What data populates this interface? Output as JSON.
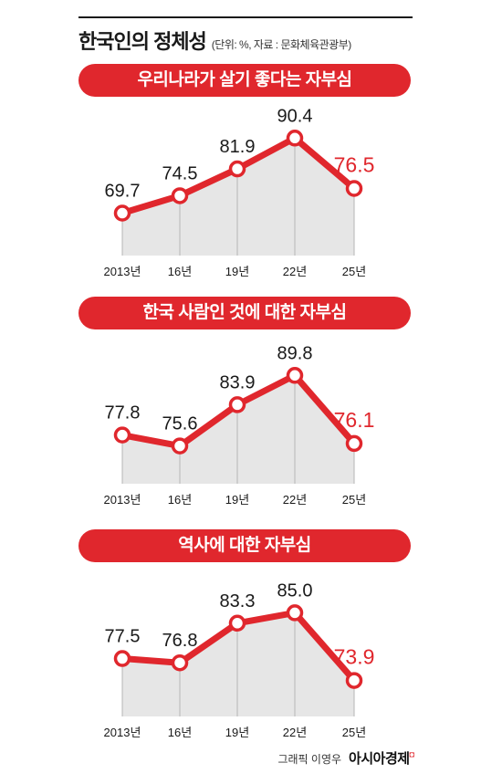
{
  "header": {
    "title": "한국인의 정체성",
    "subtitle": "(단위: %, 자료 : 문화체육관광부)"
  },
  "colors": {
    "accent": "#e0272d",
    "fill": "#e6e6e6",
    "text": "#1a1a1a"
  },
  "chart_data": [
    {
      "type": "line",
      "title": "우리나라가 살기 좋다는 자부심",
      "categories": [
        "2013년",
        "16년",
        "19년",
        "22년",
        "25년"
      ],
      "values": [
        69.7,
        74.5,
        81.9,
        90.4,
        76.5
      ],
      "labels": [
        "69.7",
        "74.5",
        "81.9",
        "90.4",
        "76.5"
      ],
      "ylim": [
        58,
        95
      ]
    },
    {
      "type": "line",
      "title": "한국 사람인 것에 대한 자부심",
      "categories": [
        "2013년",
        "16년",
        "19년",
        "22년",
        "25년"
      ],
      "values": [
        77.8,
        75.6,
        83.9,
        89.8,
        76.1
      ],
      "labels": [
        "77.8",
        "75.6",
        "83.9",
        "89.8",
        "76.1"
      ],
      "ylim": [
        68,
        95
      ]
    },
    {
      "type": "line",
      "title": "역사에 대한 자부심",
      "categories": [
        "2013년",
        "16년",
        "19년",
        "22년",
        "25년"
      ],
      "values": [
        77.5,
        76.8,
        83.3,
        85.0,
        73.9
      ],
      "labels": [
        "77.5",
        "76.8",
        "83.3",
        "85.0",
        "73.9"
      ],
      "ylim": [
        68,
        90
      ]
    }
  ],
  "footer": {
    "credit": "그래픽 이영우",
    "brand": "아시아경제",
    "brand_mark": "◘"
  }
}
